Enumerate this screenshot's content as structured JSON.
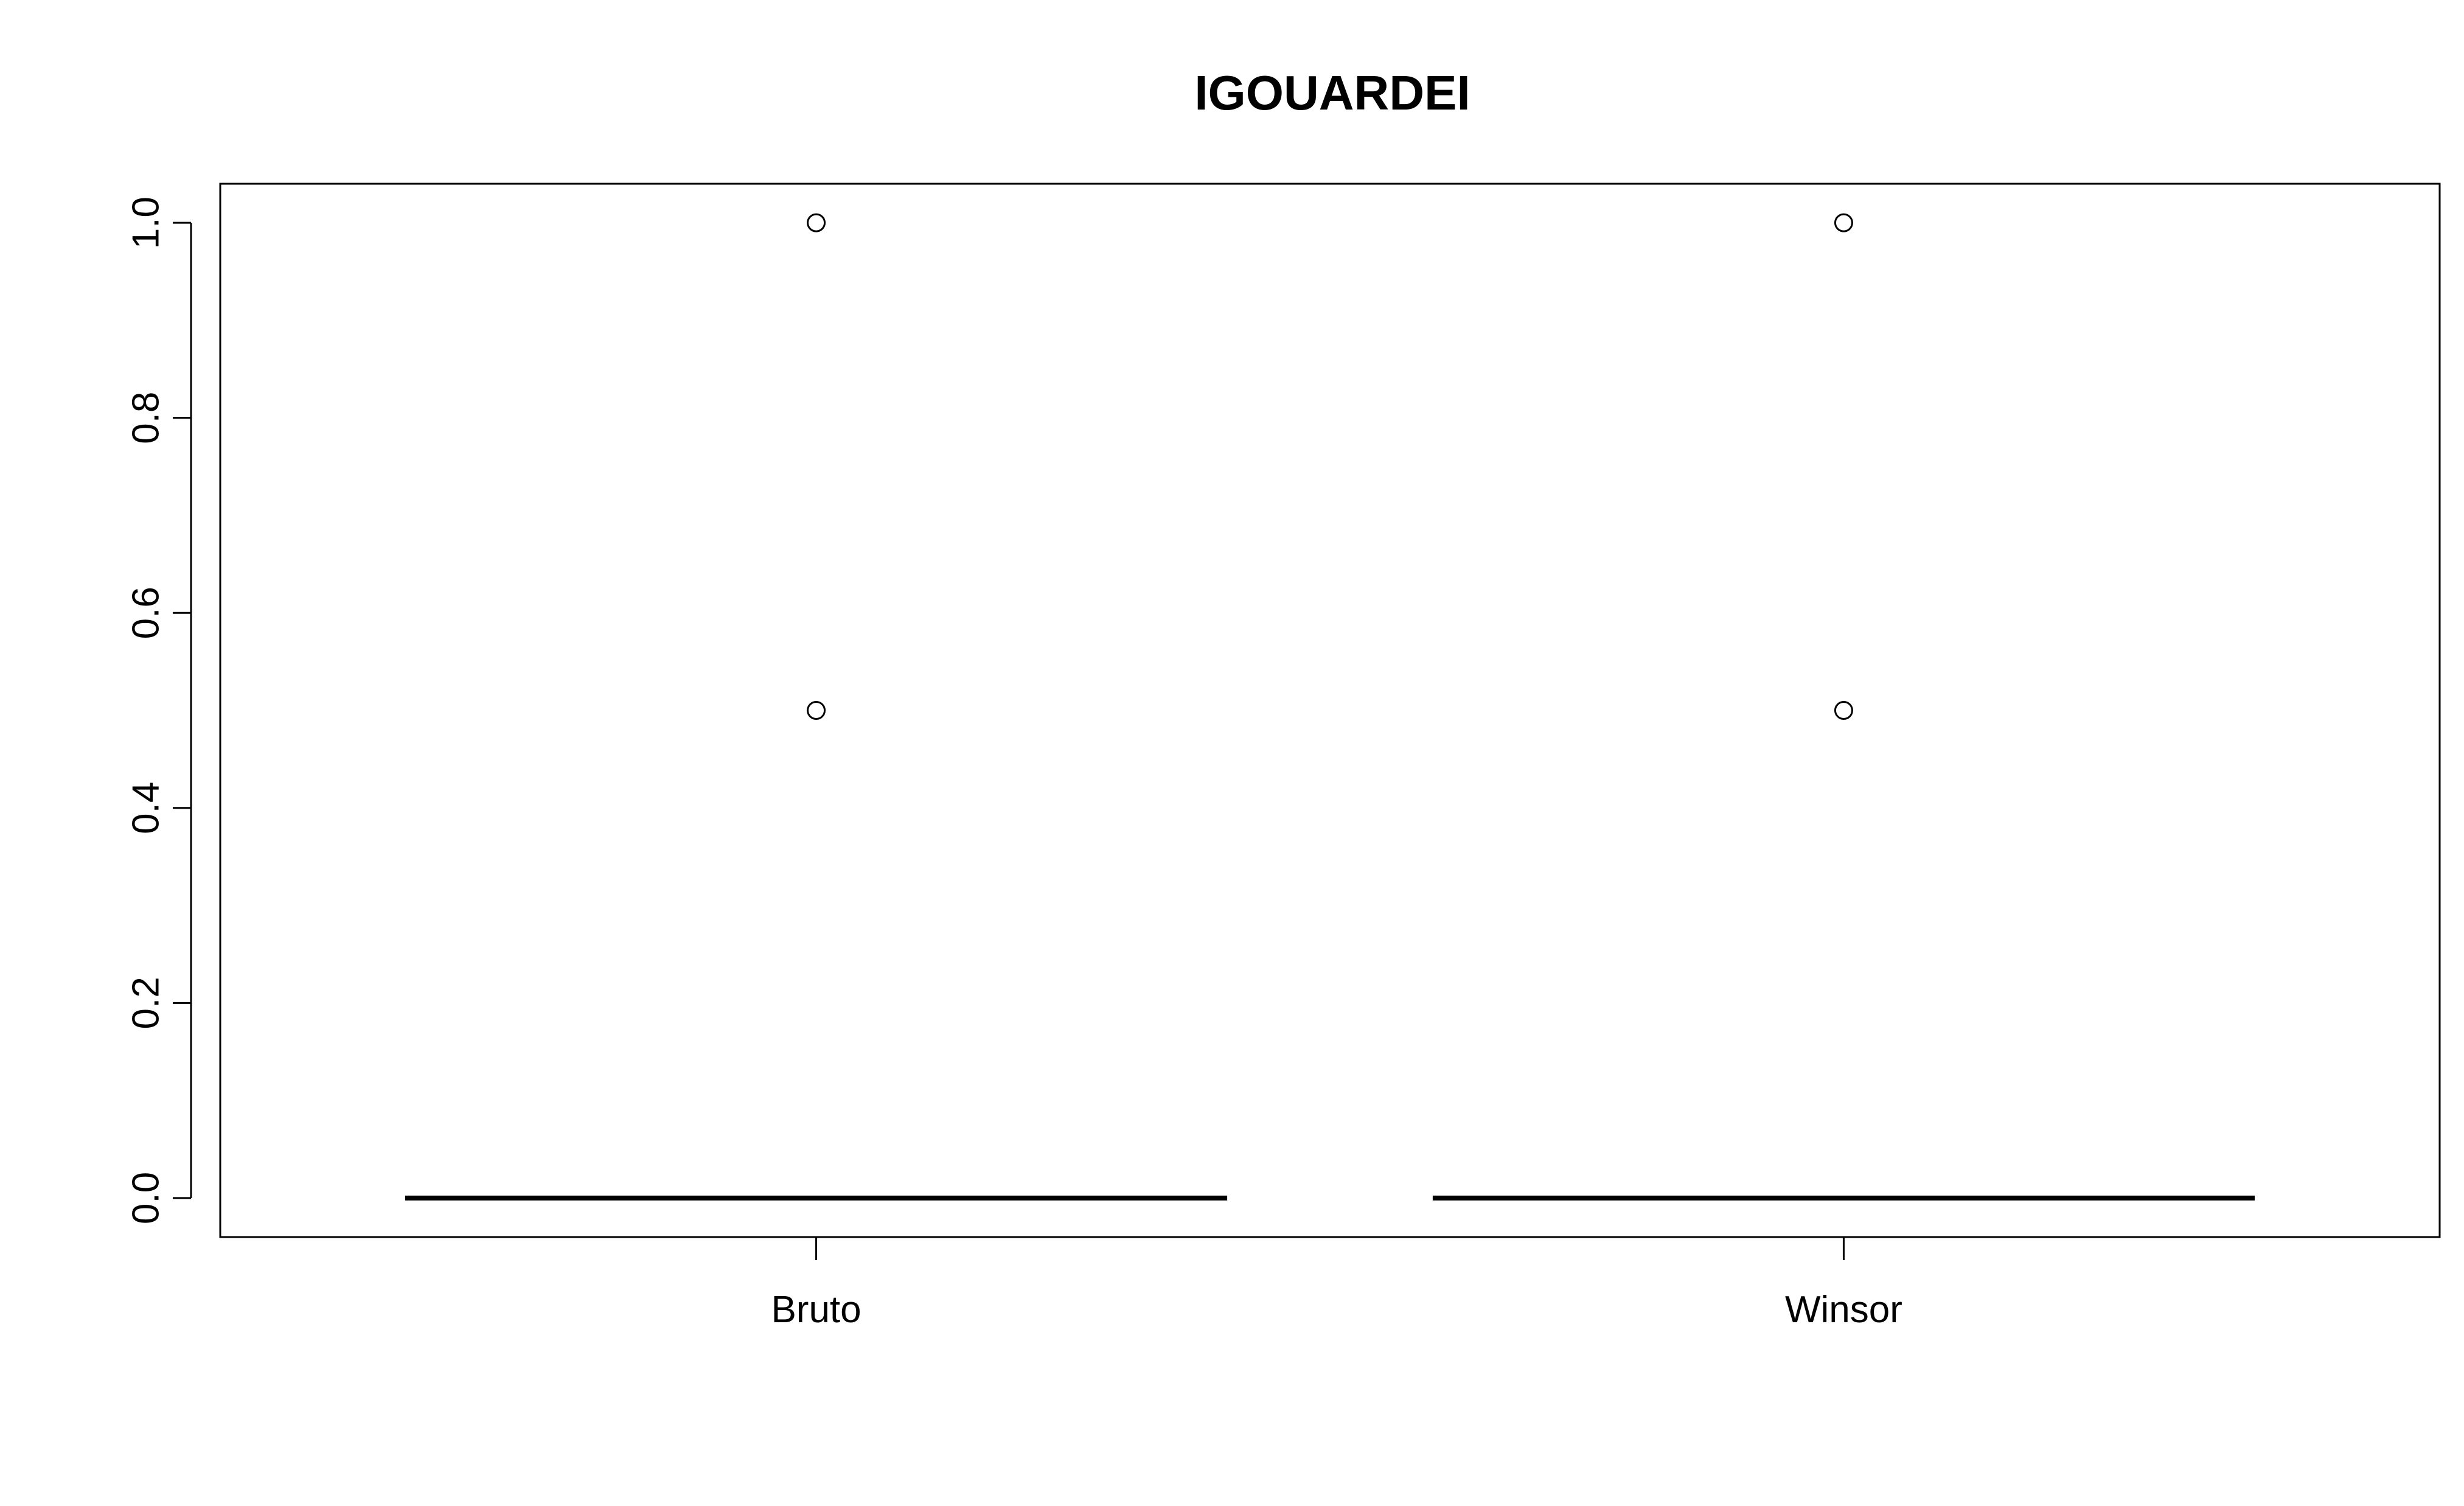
{
  "chart_data": {
    "type": "box",
    "title": "IGOUARDEI",
    "xlabel": "",
    "ylabel": "",
    "categories": [
      "Bruto",
      "Winsor"
    ],
    "boxes": [
      {
        "name": "Bruto",
        "min": 0.0,
        "q1": 0.0,
        "median": 0.0,
        "q3": 0.0,
        "max": 0.0,
        "outliers": [
          0.5,
          1.0
        ]
      },
      {
        "name": "Winsor",
        "min": 0.0,
        "q1": 0.0,
        "median": 0.0,
        "q3": 0.0,
        "max": 0.0,
        "outliers": [
          0.5,
          1.0
        ]
      }
    ],
    "ylim": [
      -0.04,
      1.04
    ],
    "yticks": [
      0.0,
      0.2,
      0.4,
      0.6,
      0.8,
      1.0
    ],
    "ytick_labels": [
      "0.0",
      "0.2",
      "0.4",
      "0.6",
      "0.8",
      "1.0"
    ],
    "grid": false,
    "colors": {
      "line": "#000000",
      "background": "#ffffff"
    }
  }
}
